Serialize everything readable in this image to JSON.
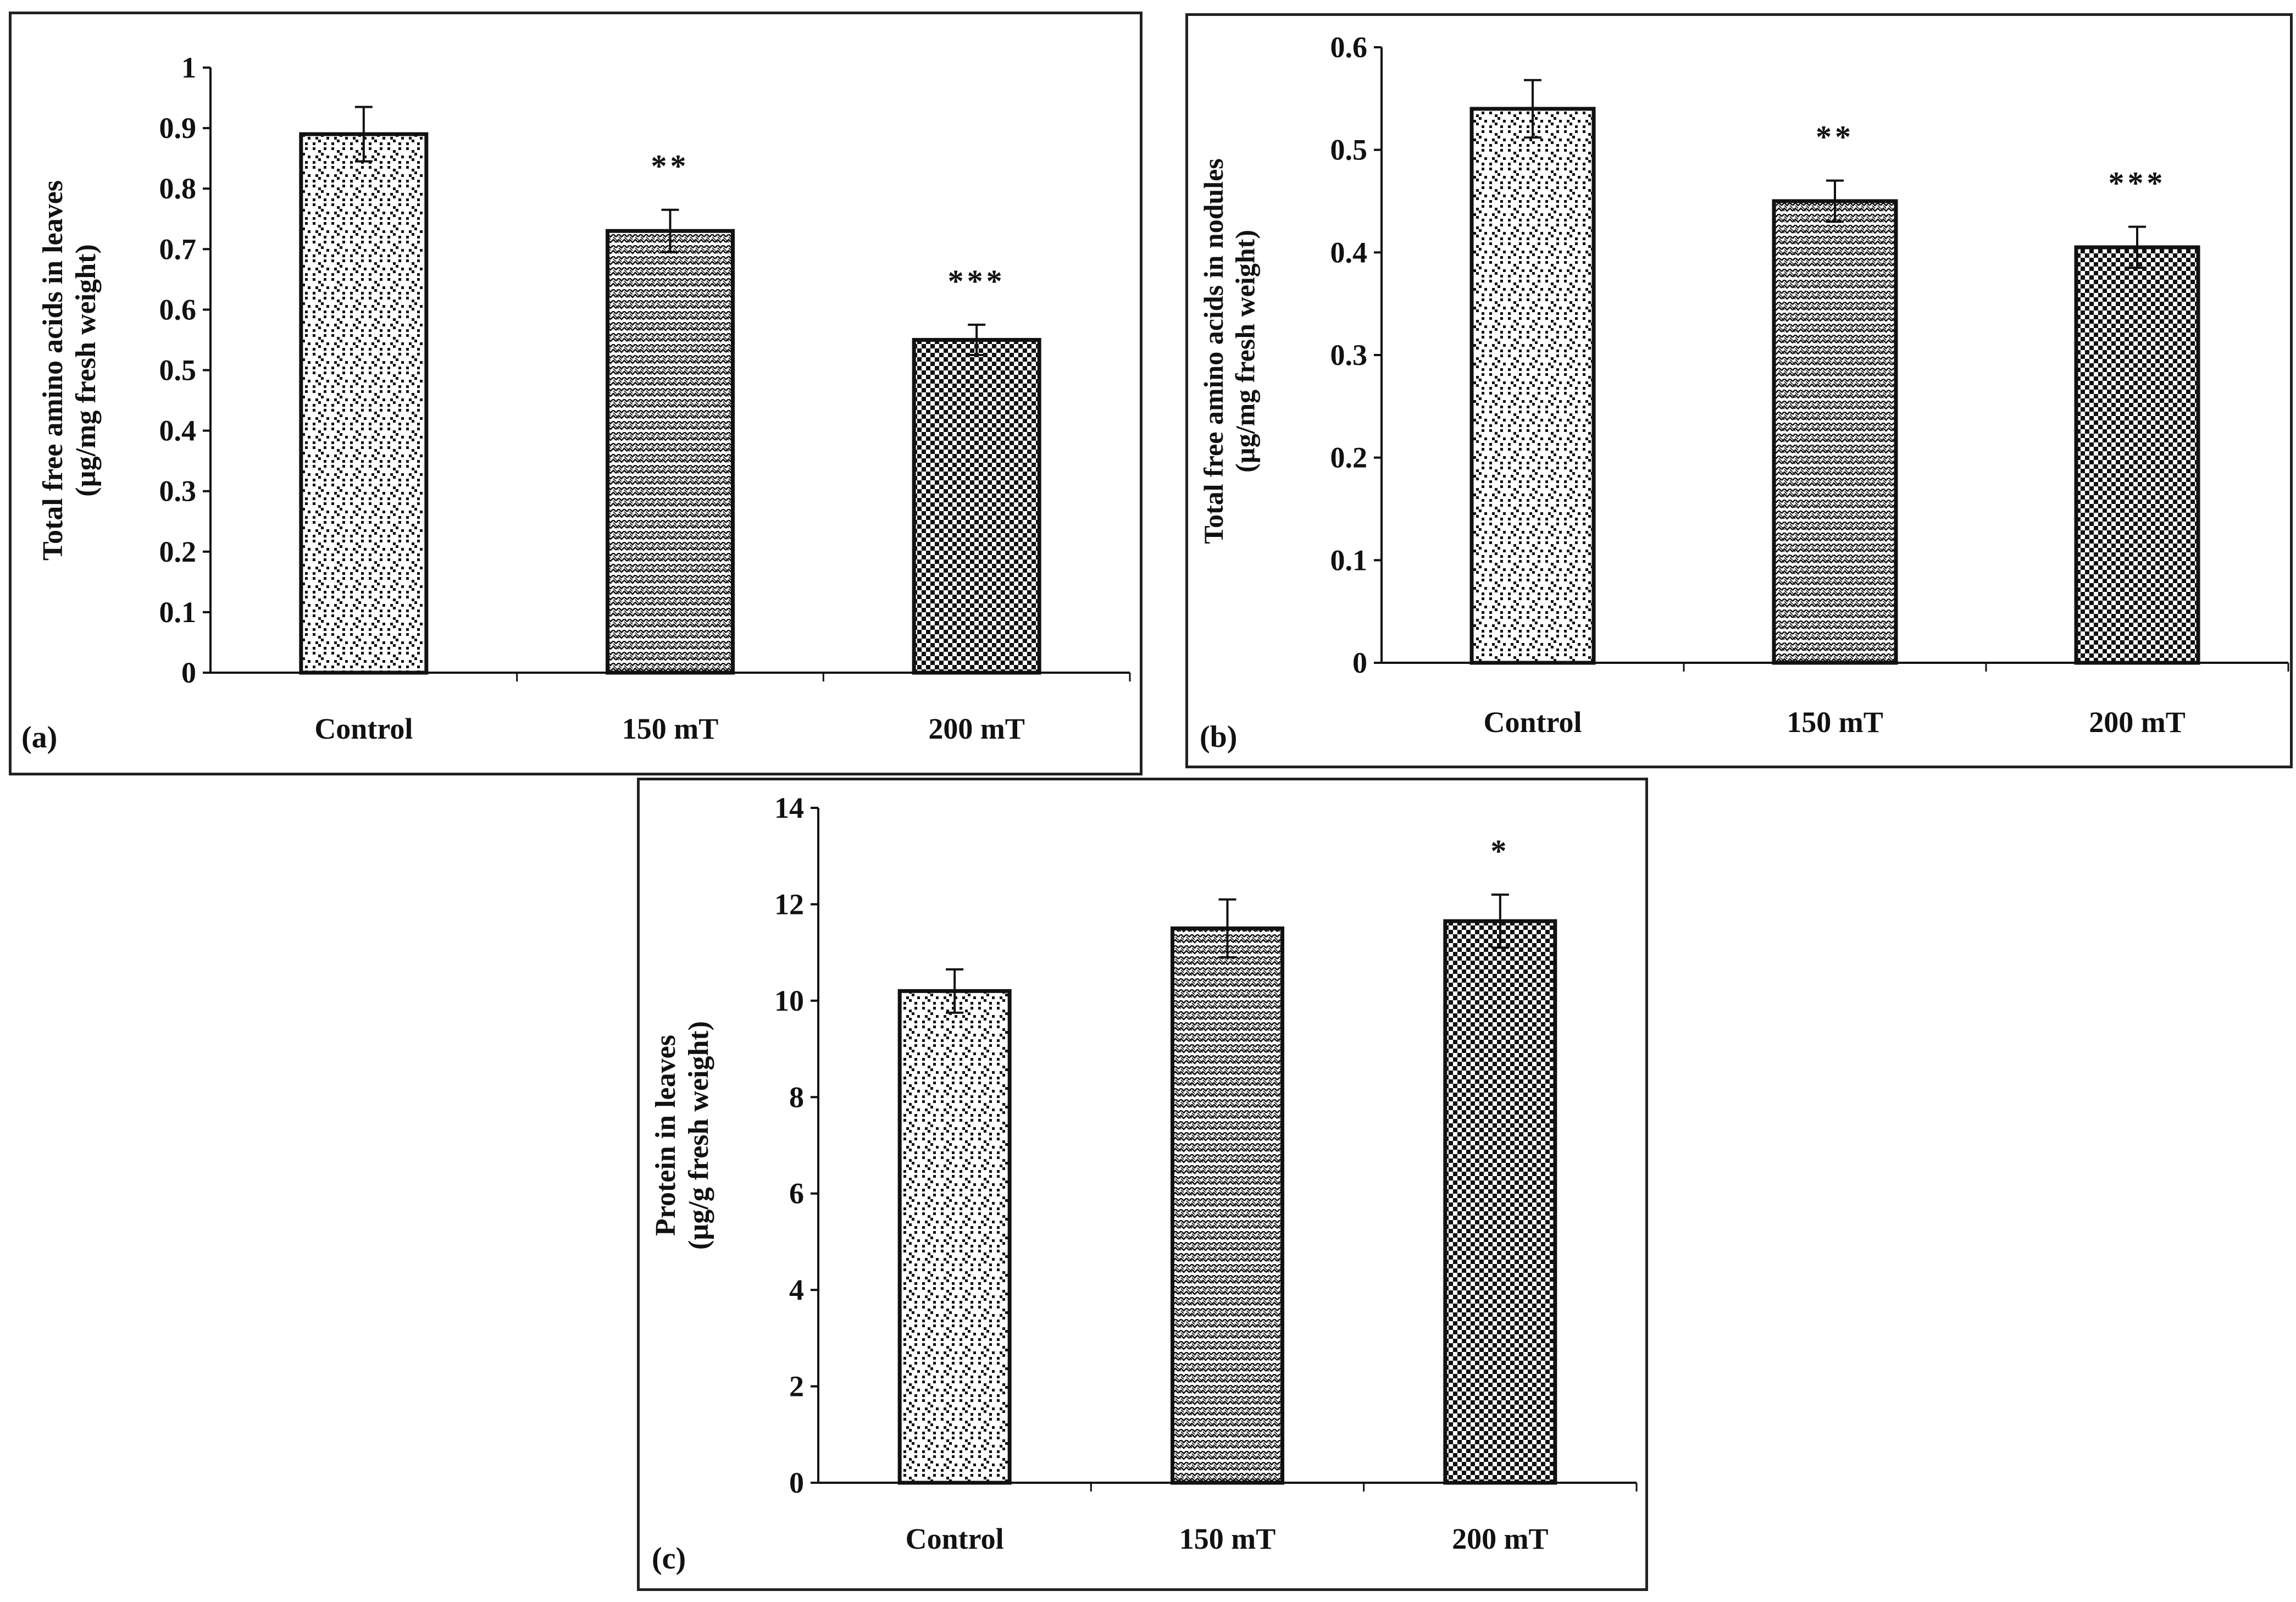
{
  "chart_data": [
    {
      "type": "bar",
      "panel_label": "(a)",
      "categories": [
        "Control",
        "150 mT",
        "200 mT"
      ],
      "values": [
        0.89,
        0.73,
        0.55
      ],
      "errors": [
        0.045,
        0.035,
        0.025
      ],
      "significance": [
        "",
        "**",
        "***"
      ],
      "ylabel": [
        "Total free amino acids in leaves",
        "(µg/mg fresh weight)"
      ],
      "ylim": [
        0,
        1
      ],
      "yticks": [
        "0",
        "0.1",
        "0.2",
        "0.3",
        "0.4",
        "0.5",
        "0.6",
        "0.7",
        "0.8",
        "0.9",
        "1"
      ]
    },
    {
      "type": "bar",
      "panel_label": "(b)",
      "categories": [
        "Control",
        "150 mT",
        "200 mT"
      ],
      "values": [
        0.54,
        0.45,
        0.405
      ],
      "errors": [
        0.028,
        0.02,
        0.02
      ],
      "significance": [
        "",
        "**",
        "***"
      ],
      "ylabel": [
        "Total free amino acids in nodules",
        "(µg/mg fresh weight)"
      ],
      "ylim": [
        0,
        0.6
      ],
      "yticks": [
        "0",
        "0.1",
        "0.2",
        "0.3",
        "0.4",
        "0.5",
        "0.6"
      ]
    },
    {
      "type": "bar",
      "panel_label": "(c)",
      "categories": [
        "Control",
        "150 mT",
        "200 mT"
      ],
      "values": [
        10.2,
        11.5,
        11.65
      ],
      "errors": [
        0.45,
        0.6,
        0.55
      ],
      "significance": [
        "",
        "",
        "*"
      ],
      "ylabel": [
        "Protein in leaves",
        "(µg/g fresh weight)"
      ],
      "ylim": [
        0,
        14
      ],
      "yticks": [
        "0",
        "2",
        "4",
        "6",
        "8",
        "10",
        "12",
        "14"
      ]
    }
  ],
  "colors": {
    "stroke": "#111111",
    "background": "#ffffff"
  }
}
